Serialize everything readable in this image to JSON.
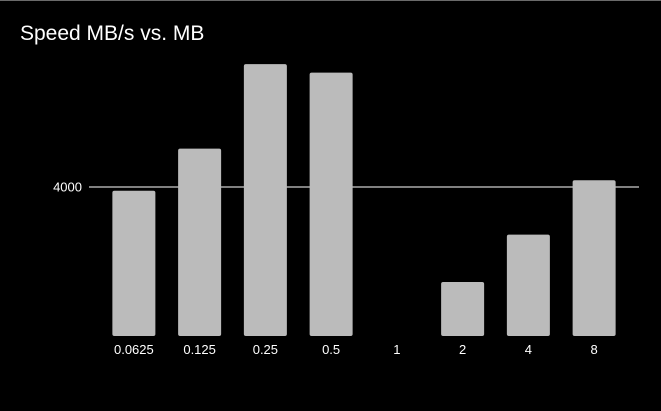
{
  "chart_data": {
    "type": "bar",
    "title": "Speed MB/s vs. MB",
    "xlabel": "",
    "ylabel": "",
    "categories": [
      "0.0625",
      "0.125",
      "0.25",
      "0.5",
      "1",
      "2",
      "4",
      "8"
    ],
    "values": [
      3900,
      5030,
      7300,
      7070,
      0,
      1450,
      2720,
      4180
    ],
    "ylim": [
      0,
      8000
    ],
    "y_ticks": [
      4000
    ],
    "y_tick_labels": [
      "4000"
    ],
    "grid": true,
    "legend": "none",
    "colors": {
      "background": "#000000",
      "bar": "#bbbbbb",
      "gridline": "#ffffff",
      "text": "#ffffff"
    }
  }
}
